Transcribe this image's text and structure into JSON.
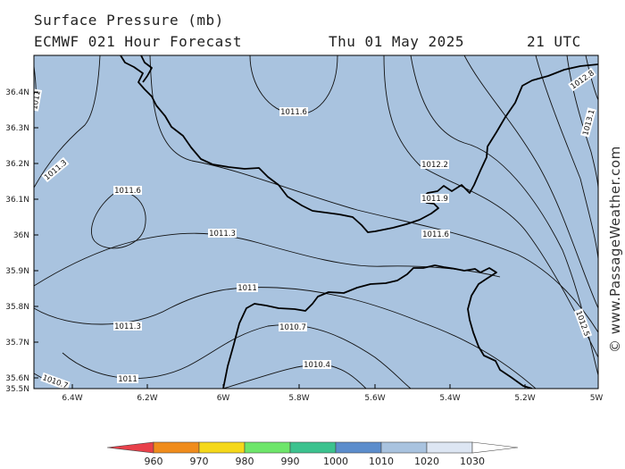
{
  "header": {
    "title": "Surface Pressure (mb)",
    "model_line": "ECMWF 021 Hour Forecast",
    "date": "Thu 01 May 2025",
    "time": "21 UTC"
  },
  "watermark": "© www.PassageWeather.com",
  "map": {
    "background_color": "#a9c3df",
    "coastline_color": "#000000",
    "isobar_color": "#111111",
    "lon_ticks": [
      "6.4W",
      "6.2W",
      "6W",
      "5.8W",
      "5.6W",
      "5.4W",
      "5.2W",
      "5W"
    ],
    "lat_ticks": [
      "36.4N",
      "36.3N",
      "36.2N",
      "36.1N",
      "36N",
      "35.9N",
      "35.8N",
      "35.7N",
      "35.6N",
      "35.5N"
    ],
    "isobar_labels": [
      "1011",
      "1011.3",
      "1011.6",
      "1011.6",
      "1011.3",
      "1011",
      "1011.3",
      "1011",
      "1010.7",
      "1010.7",
      "1010.4",
      "1011.6",
      "1011.9",
      "1012.2",
      "1012.8",
      "1013.1",
      "1012.5"
    ]
  },
  "legend": {
    "values": [
      "960",
      "970",
      "980",
      "990",
      "1000",
      "1010",
      "1020",
      "1030"
    ],
    "colors": [
      "#e8404a",
      "#f08c1c",
      "#f5d81a",
      "#6ee66a",
      "#3cc28e",
      "#5c8dcc",
      "#a9c3df",
      "#dde6f3",
      "#ffffff"
    ]
  }
}
